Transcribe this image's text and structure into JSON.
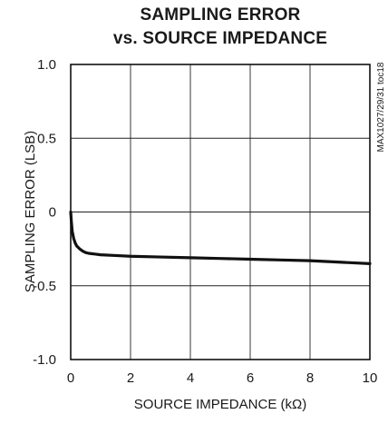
{
  "chart_data": {
    "type": "line",
    "title": [
      "SAMPLING ERROR",
      "vs. SOURCE IMPEDANCE"
    ],
    "xlabel": "SOURCE IMPEDANCE (kΩ)",
    "ylabel": "SAMPLING ERROR (LSB)",
    "xlim": [
      0,
      10
    ],
    "ylim": [
      -1.0,
      1.0
    ],
    "x_ticks": [
      0,
      2,
      4,
      6,
      8,
      10
    ],
    "x_tick_labels": [
      "0",
      "2",
      "4",
      "6",
      "8",
      "10"
    ],
    "y_ticks": [
      1.0,
      0.5,
      0,
      -0.5,
      -1.0
    ],
    "y_tick_labels": [
      "1.0",
      "0.5",
      "0",
      "-0.5",
      "-1.0"
    ],
    "grid": true,
    "side_note": "MAX1027/29/31 toc18",
    "series": [
      {
        "x": [
          0,
          0.02,
          0.05,
          0.1,
          0.15,
          0.2,
          0.3,
          0.4,
          0.5,
          0.6,
          0.8,
          1.0,
          1.5,
          2,
          3,
          4,
          5,
          6,
          7,
          8,
          9,
          10
        ],
        "y": [
          0.0,
          -0.06,
          -0.13,
          -0.18,
          -0.21,
          -0.23,
          -0.25,
          -0.265,
          -0.275,
          -0.28,
          -0.285,
          -0.29,
          -0.295,
          -0.3,
          -0.305,
          -0.31,
          -0.315,
          -0.32,
          -0.325,
          -0.33,
          -0.34,
          -0.35
        ]
      }
    ]
  }
}
